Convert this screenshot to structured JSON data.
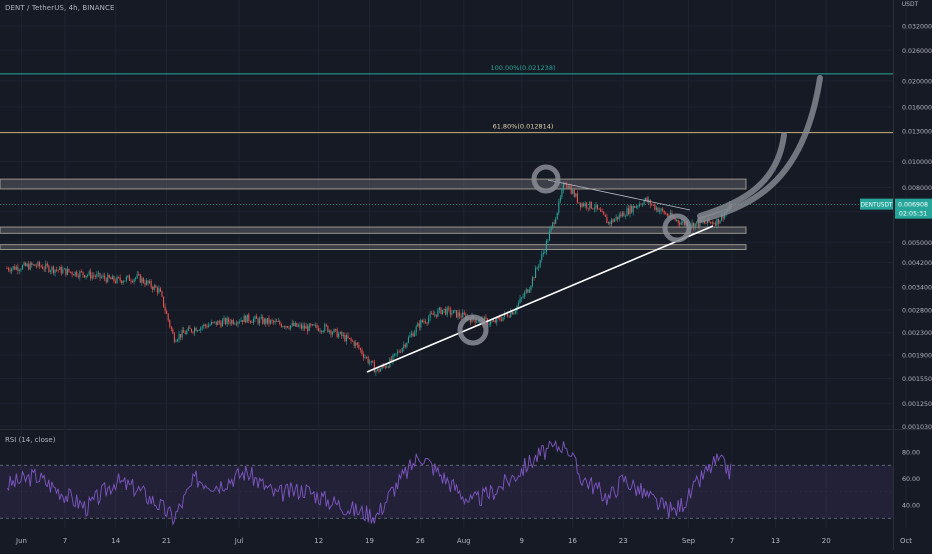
{
  "header": {
    "title": "DENT / TetherUS, 4h, BINANCE"
  },
  "colors": {
    "background": "#161a25",
    "candle_up": "#26a69a",
    "candle_down": "#ef5350",
    "rsi_line": "#7e57c2",
    "fib_100": "#26a69a",
    "fib_618": "#c8b27a",
    "price_tag": "#26a69a",
    "drawing": "#8a8d96",
    "trendline": "#ffffff"
  },
  "price_axis": {
    "currency": "USDT",
    "ticks": [
      "0.032000",
      "0.026000",
      "0.020000",
      "0.016000",
      "0.013000",
      "0.010000",
      "0.008000",
      "0.006500",
      "0.005000",
      "0.004200",
      "0.003400",
      "0.002800",
      "0.002300",
      "0.001900",
      "0.001550",
      "0.001250",
      "0.001030"
    ]
  },
  "time_axis": {
    "labels": [
      "Jun",
      "7",
      "14",
      "21",
      "Jul",
      "12",
      "19",
      "26",
      "Aug",
      "9",
      "16",
      "23",
      "Sep",
      "7",
      "13",
      "20",
      "Oct"
    ]
  },
  "annotations": {
    "fib_100_label": "100.00%(0.021238)",
    "fib_618_label": "61.80%(0.012814)",
    "symbol_tag": "DENTUSDT",
    "last_price": "0.006908",
    "countdown": "02:05:31"
  },
  "rsi": {
    "title": "RSI (14, close)",
    "ticks": [
      "80.00",
      "60.00",
      "40.00"
    ],
    "upper_band": 70,
    "lower_band": 30
  },
  "chart_data": {
    "type": "candlestick",
    "title": "DENT / TetherUS, 4h, BINANCE",
    "y_scale": "log",
    "ylim": [
      0.00095,
      0.04
    ],
    "x_range": [
      "2021-05-30",
      "2021-10-01"
    ],
    "price_series": [
      {
        "date": "2021-05-30",
        "close": 0.004
      },
      {
        "date": "2021-06-03",
        "close": 0.0041
      },
      {
        "date": "2021-06-07",
        "close": 0.0039
      },
      {
        "date": "2021-06-10",
        "close": 0.0038
      },
      {
        "date": "2021-06-14",
        "close": 0.0036
      },
      {
        "date": "2021-06-17",
        "close": 0.0037
      },
      {
        "date": "2021-06-20",
        "close": 0.0033
      },
      {
        "date": "2021-06-22",
        "close": 0.0022
      },
      {
        "date": "2021-06-25",
        "close": 0.0024
      },
      {
        "date": "2021-06-28",
        "close": 0.0025
      },
      {
        "date": "2021-07-02",
        "close": 0.0026
      },
      {
        "date": "2021-07-06",
        "close": 0.0025
      },
      {
        "date": "2021-07-10",
        "close": 0.0024
      },
      {
        "date": "2021-07-13",
        "close": 0.0024
      },
      {
        "date": "2021-07-17",
        "close": 0.0021
      },
      {
        "date": "2021-07-20",
        "close": 0.00165
      },
      {
        "date": "2021-07-22",
        "close": 0.0018
      },
      {
        "date": "2021-07-26",
        "close": 0.0025
      },
      {
        "date": "2021-07-29",
        "close": 0.0028
      },
      {
        "date": "2021-08-02",
        "close": 0.0026
      },
      {
        "date": "2021-08-05",
        "close": 0.0025
      },
      {
        "date": "2021-08-08",
        "close": 0.0028
      },
      {
        "date": "2021-08-10",
        "close": 0.0034
      },
      {
        "date": "2021-08-12",
        "close": 0.0046
      },
      {
        "date": "2021-08-14",
        "close": 0.0067
      },
      {
        "date": "2021-08-15",
        "close": 0.0085
      },
      {
        "date": "2021-08-17",
        "close": 0.007
      },
      {
        "date": "2021-08-19",
        "close": 0.0068
      },
      {
        "date": "2021-08-21",
        "close": 0.0059
      },
      {
        "date": "2021-08-23",
        "close": 0.0064
      },
      {
        "date": "2021-08-26",
        "close": 0.0072
      },
      {
        "date": "2021-08-28",
        "close": 0.0066
      },
      {
        "date": "2021-08-30",
        "close": 0.0061
      },
      {
        "date": "2021-09-01",
        "close": 0.0058
      },
      {
        "date": "2021-09-03",
        "close": 0.0059
      },
      {
        "date": "2021-09-05",
        "close": 0.006
      },
      {
        "date": "2021-09-07",
        "close": 0.006908
      }
    ],
    "horizontal_levels": [
      {
        "name": "100.00%",
        "value": 0.021238
      },
      {
        "name": "61.80%",
        "value": 0.012814
      }
    ],
    "rsi_series": {
      "name": "RSI (14, close)",
      "ylim": [
        20,
        90
      ],
      "values": [
        {
          "date": "2021-05-30",
          "v": 55
        },
        {
          "date": "2021-06-03",
          "v": 62
        },
        {
          "date": "2021-06-07",
          "v": 48
        },
        {
          "date": "2021-06-10",
          "v": 38
        },
        {
          "date": "2021-06-14",
          "v": 58
        },
        {
          "date": "2021-06-17",
          "v": 52
        },
        {
          "date": "2021-06-20",
          "v": 40
        },
        {
          "date": "2021-06-22",
          "v": 30
        },
        {
          "date": "2021-06-25",
          "v": 60
        },
        {
          "date": "2021-06-28",
          "v": 55
        },
        {
          "date": "2021-07-02",
          "v": 65
        },
        {
          "date": "2021-07-06",
          "v": 48
        },
        {
          "date": "2021-07-10",
          "v": 52
        },
        {
          "date": "2021-07-13",
          "v": 44
        },
        {
          "date": "2021-07-17",
          "v": 36
        },
        {
          "date": "2021-07-20",
          "v": 32
        },
        {
          "date": "2021-07-22",
          "v": 50
        },
        {
          "date": "2021-07-26",
          "v": 78
        },
        {
          "date": "2021-07-29",
          "v": 62
        },
        {
          "date": "2021-08-02",
          "v": 42
        },
        {
          "date": "2021-08-05",
          "v": 50
        },
        {
          "date": "2021-08-08",
          "v": 62
        },
        {
          "date": "2021-08-10",
          "v": 72
        },
        {
          "date": "2021-08-12",
          "v": 80
        },
        {
          "date": "2021-08-14",
          "v": 84
        },
        {
          "date": "2021-08-15",
          "v": 88
        },
        {
          "date": "2021-08-17",
          "v": 62
        },
        {
          "date": "2021-08-19",
          "v": 54
        },
        {
          "date": "2021-08-21",
          "v": 45
        },
        {
          "date": "2021-08-23",
          "v": 60
        },
        {
          "date": "2021-08-26",
          "v": 48
        },
        {
          "date": "2021-08-28",
          "v": 40
        },
        {
          "date": "2021-08-30",
          "v": 35
        },
        {
          "date": "2021-09-01",
          "v": 46
        },
        {
          "date": "2021-09-03",
          "v": 62
        },
        {
          "date": "2021-09-05",
          "v": 74
        },
        {
          "date": "2021-09-07",
          "v": 64
        }
      ]
    }
  }
}
